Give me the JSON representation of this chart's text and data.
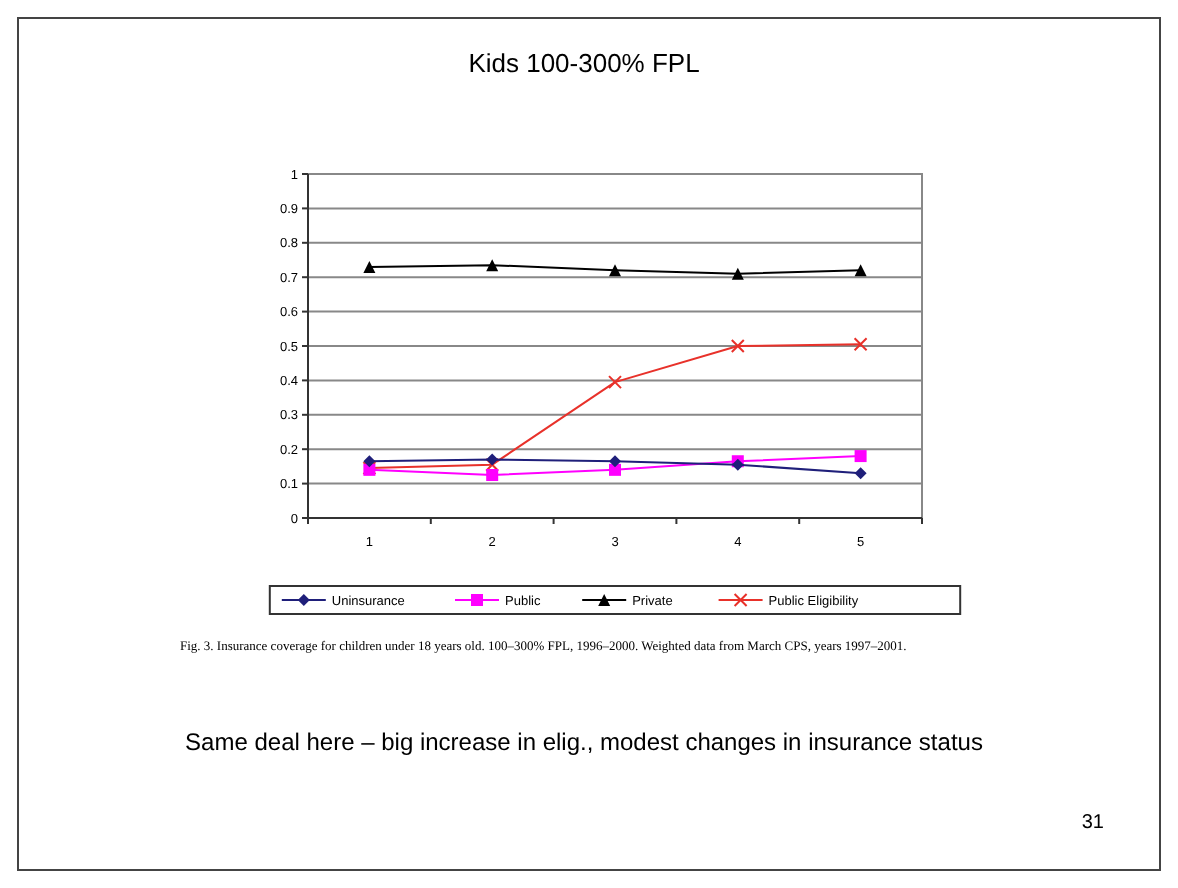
{
  "chart_data": {
    "type": "line",
    "title": "Kids 100-300% FPL",
    "categories": [
      "1",
      "2",
      "3",
      "4",
      "5"
    ],
    "series": [
      {
        "name": "Uninsurance",
        "color": "#1f1f7a",
        "marker": "diamond",
        "values": [
          0.165,
          0.17,
          0.165,
          0.155,
          0.13
        ]
      },
      {
        "name": "Public",
        "color": "#ff00ff",
        "marker": "square",
        "values": [
          0.14,
          0.125,
          0.14,
          0.165,
          0.18
        ]
      },
      {
        "name": "Private",
        "color": "#000000",
        "marker": "triangle",
        "values": [
          0.73,
          0.735,
          0.72,
          0.71,
          0.72
        ]
      },
      {
        "name": "Public Eligibility",
        "color": "#e8312a",
        "marker": "cross",
        "values": [
          0.145,
          0.155,
          0.395,
          0.5,
          0.505
        ]
      }
    ],
    "ylim": [
      0,
      1
    ],
    "yticks": [
      0,
      0.1,
      0.2,
      0.3,
      0.4,
      0.5,
      0.6,
      0.7,
      0.8,
      0.9,
      1
    ],
    "grid": "y",
    "legend": "bottom",
    "annotations": [
      "Fig. 3. Insurance coverage for children under 18 years old. 100–300% FPL, 1996–2000. Weighted data from March CPS, years 1997–2001.",
      "Same deal here – big increase in elig., modest changes in insurance status",
      "31"
    ]
  }
}
